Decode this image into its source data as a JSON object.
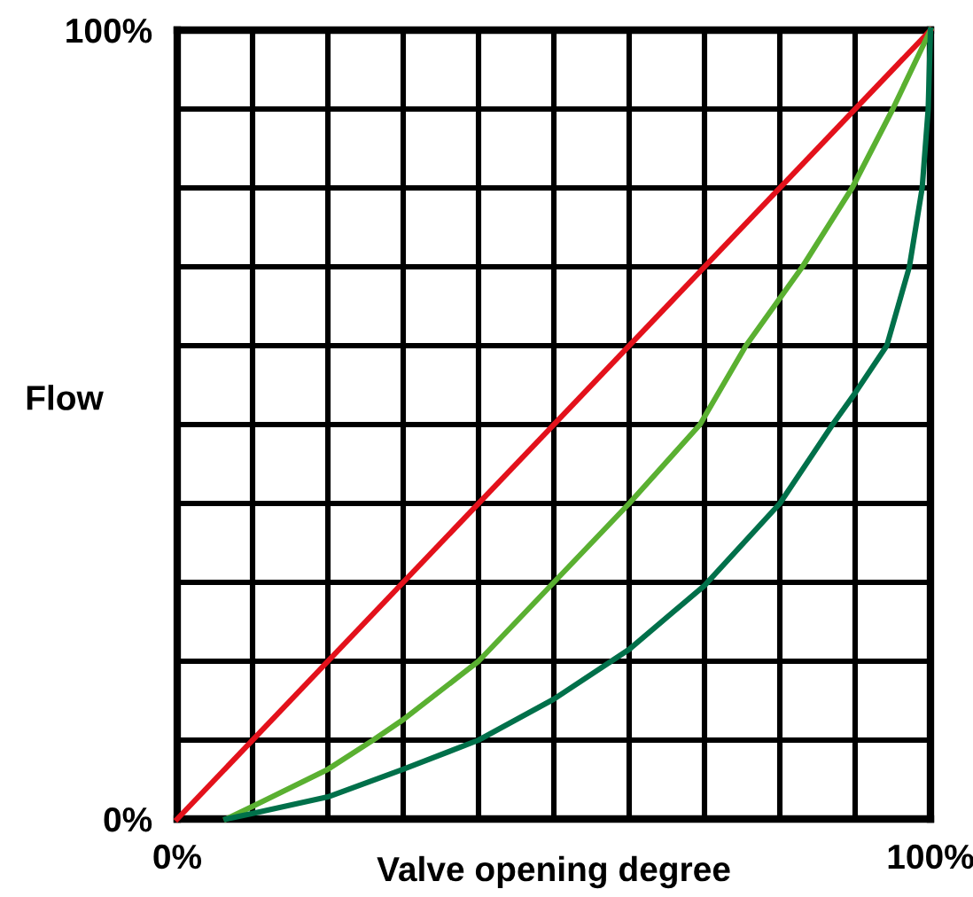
{
  "chart_data": {
    "type": "line",
    "xlabel": "Valve opening degree",
    "ylabel": "Flow",
    "xlim": [
      0,
      100
    ],
    "ylim": [
      0,
      100
    ],
    "xticks": [
      {
        "value": 0,
        "label": "0%"
      },
      {
        "value": 10,
        "label": null
      },
      {
        "value": 20,
        "label": null
      },
      {
        "value": 30,
        "label": null
      },
      {
        "value": 40,
        "label": null
      },
      {
        "value": 50,
        "label": null
      },
      {
        "value": 60,
        "label": null
      },
      {
        "value": 70,
        "label": null
      },
      {
        "value": 80,
        "label": null
      },
      {
        "value": 90,
        "label": null
      },
      {
        "value": 100,
        "label": "100%"
      }
    ],
    "yticks": [
      {
        "value": 0,
        "label": "0%"
      },
      {
        "value": 10,
        "label": null
      },
      {
        "value": 20,
        "label": null
      },
      {
        "value": 30,
        "label": null
      },
      {
        "value": 40,
        "label": null
      },
      {
        "value": 50,
        "label": null
      },
      {
        "value": 60,
        "label": null
      },
      {
        "value": 70,
        "label": null
      },
      {
        "value": 80,
        "label": null
      },
      {
        "value": 90,
        "label": null
      },
      {
        "value": 100,
        "label": "100%"
      }
    ],
    "grid": true,
    "legend": false,
    "marker": "none",
    "line_style": "solid",
    "series": [
      {
        "color": "#e3111b",
        "x": [
          0,
          100
        ],
        "values": [
          0,
          100
        ]
      },
      {
        "color": "#5ab031",
        "x": [
          6.5,
          10,
          20,
          26,
          30,
          40,
          50,
          60,
          69.4,
          75.5,
          83,
          89.6,
          95,
          100
        ],
        "values": [
          0,
          1.6,
          6.3,
          10,
          12.6,
          20,
          30,
          40,
          50,
          60,
          70,
          80,
          90,
          100
        ]
      },
      {
        "color": "#00704a",
        "x": [
          6.5,
          10,
          20,
          30,
          40,
          50,
          60,
          70,
          80,
          87,
          90,
          94.2,
          97.2,
          98.9,
          99.7,
          100
        ],
        "values": [
          0,
          0.7,
          2.8,
          6.3,
          10,
          15.2,
          21.5,
          29.6,
          40,
          50,
          54,
          60,
          70,
          80,
          90,
          100
        ]
      }
    ]
  }
}
